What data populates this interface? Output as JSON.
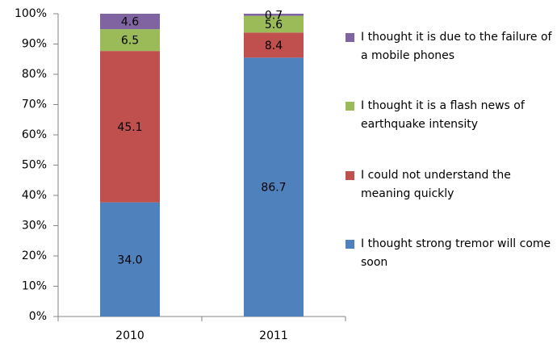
{
  "chart_data": {
    "type": "stacked_percent_bar",
    "categories": [
      "2010",
      "2011"
    ],
    "series": [
      {
        "name": "I thought strong tremor will come soon",
        "color": "#4f81bd",
        "values": [
          34.0,
          86.7
        ],
        "value_labels": [
          "34.0",
          "86.7"
        ]
      },
      {
        "name": "I could not understand the meaning quickly",
        "color": "#c0504d",
        "values": [
          45.1,
          8.4
        ],
        "value_labels": [
          "45.1",
          "8.4"
        ]
      },
      {
        "name": "I thought it is a flash news of earthquake intensity",
        "color": "#9bbb59",
        "values": [
          6.5,
          5.6
        ],
        "value_labels": [
          "6.5",
          "5.6"
        ]
      },
      {
        "name": "I thought it is due to the failure of a mobile phones",
        "color": "#8064a2",
        "values": [
          4.6,
          0.7
        ],
        "value_labels": [
          "4.6",
          "0.7"
        ]
      }
    ],
    "ylim": [
      0,
      100
    ],
    "yticks": [
      {
        "value": 0,
        "label": "0%"
      },
      {
        "value": 10,
        "label": "10%"
      },
      {
        "value": 20,
        "label": "20%"
      },
      {
        "value": 30,
        "label": "30%"
      },
      {
        "value": 40,
        "label": "40%"
      },
      {
        "value": 50,
        "label": "50%"
      },
      {
        "value": 60,
        "label": "60%"
      },
      {
        "value": 70,
        "label": "70%"
      },
      {
        "value": 80,
        "label": "80%"
      },
      {
        "value": 90,
        "label": "90%"
      },
      {
        "value": 100,
        "label": "100%"
      }
    ],
    "legend": "right"
  }
}
